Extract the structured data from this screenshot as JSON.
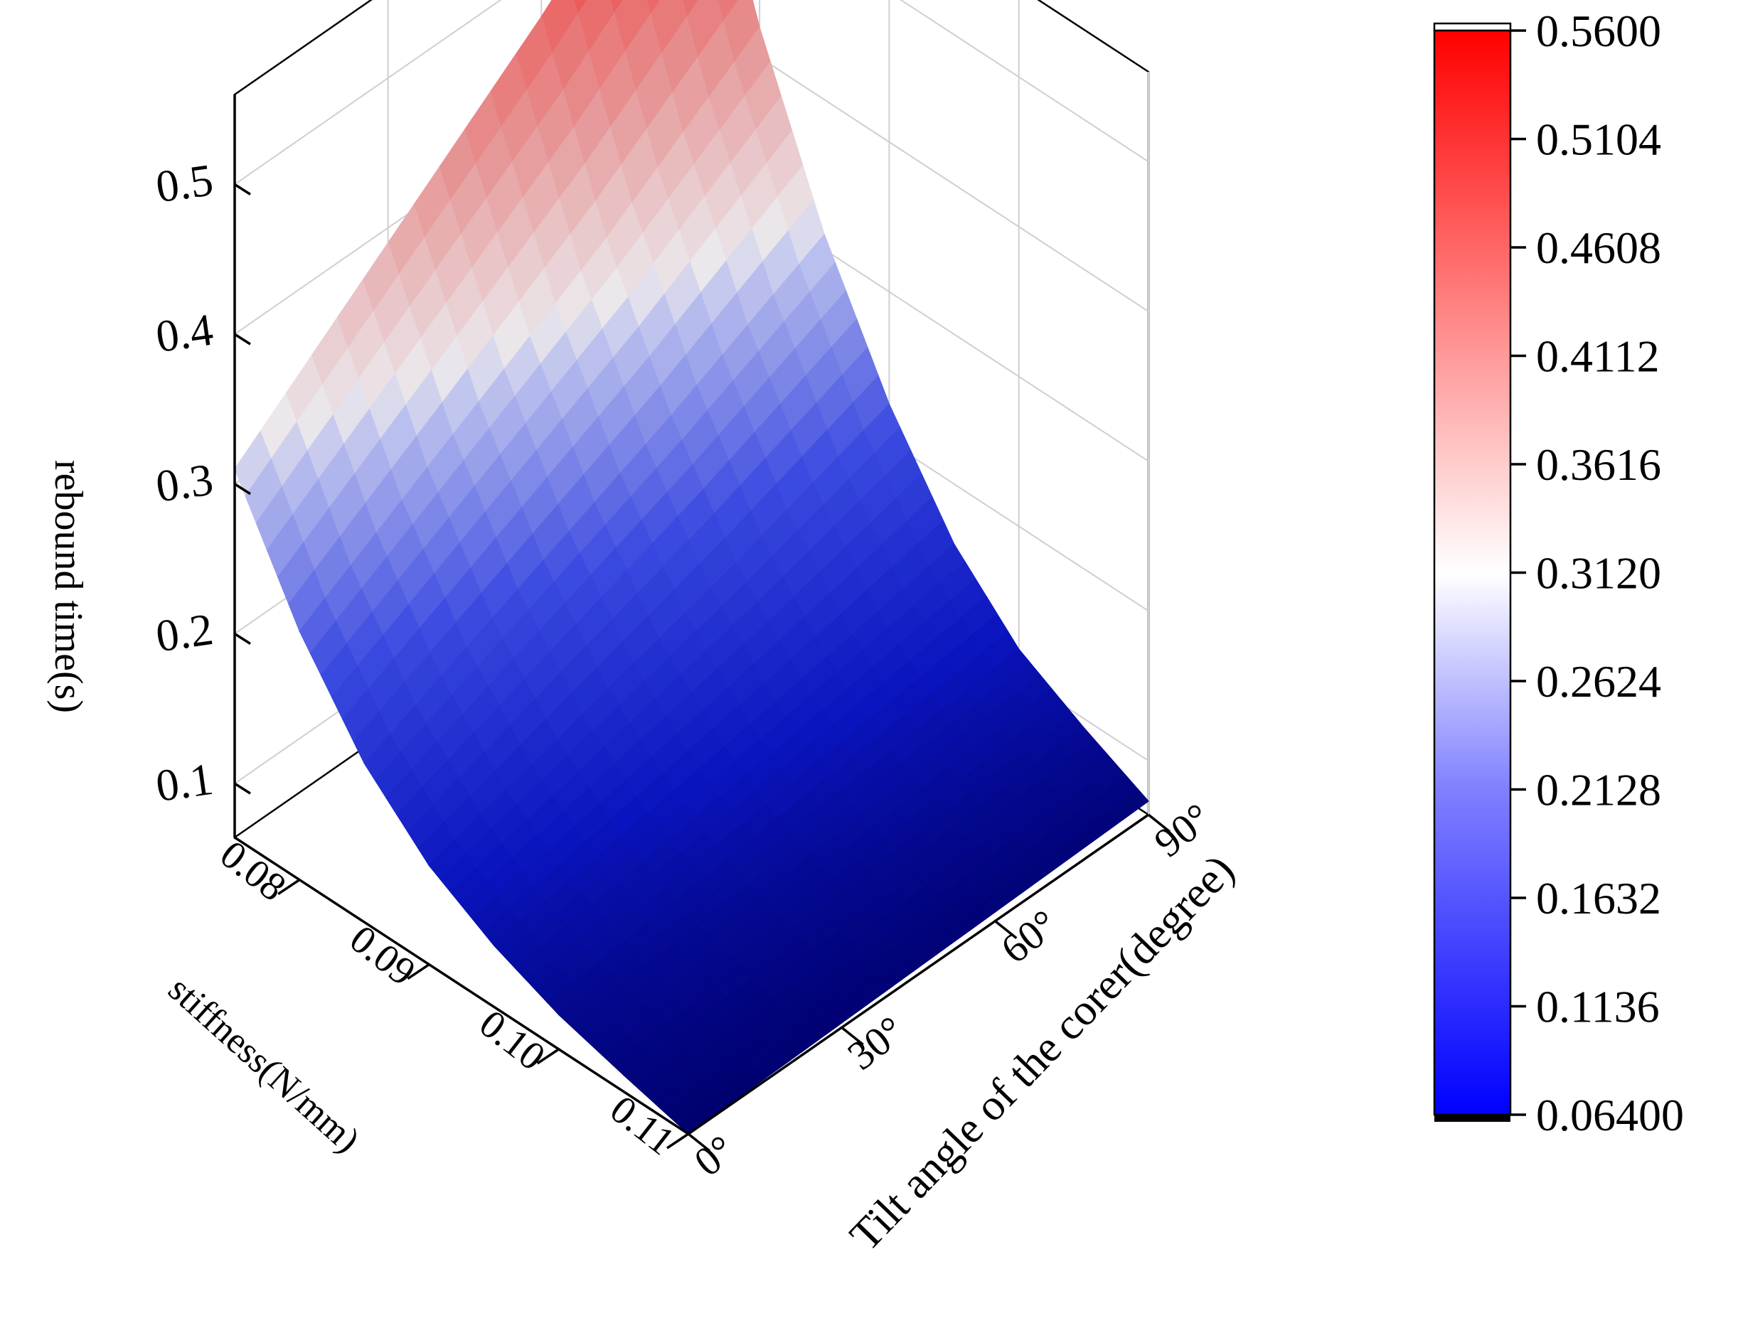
{
  "chart_data": {
    "type": "surface3d",
    "x_axis": {
      "label": "stiffness(N/mm)",
      "ticks": [
        "0.08",
        "0.09",
        "0.10",
        "0.11"
      ],
      "tick_values": [
        0.08,
        0.09,
        0.1,
        0.11
      ],
      "range": [
        0.075,
        0.11
      ]
    },
    "y_axis": {
      "label": "Tilt angle of the corer(degree)",
      "ticks": [
        "0°",
        "30°",
        "60°",
        "90°"
      ],
      "tick_values": [
        0,
        30,
        60,
        90
      ],
      "range": [
        0,
        90
      ]
    },
    "z_axis": {
      "label": "rebound time(s)",
      "ticks": [
        "0.1",
        "0.2",
        "0.3",
        "0.4",
        "0.5"
      ],
      "tick_values": [
        0.1,
        0.2,
        0.3,
        0.4,
        0.5
      ],
      "range": [
        0.064,
        0.56
      ]
    },
    "stiffness_values": [
      0.075,
      0.08,
      0.085,
      0.09,
      0.095,
      0.1,
      0.105,
      0.11
    ],
    "angle_values": [
      0,
      30,
      60,
      90
    ],
    "surface_z": [
      [
        0.31,
        0.39,
        0.47,
        0.56
      ],
      [
        0.23,
        0.29,
        0.35,
        0.42
      ],
      [
        0.17,
        0.215,
        0.26,
        0.31
      ],
      [
        0.13,
        0.16,
        0.19,
        0.225
      ],
      [
        0.105,
        0.122,
        0.14,
        0.16
      ],
      [
        0.087,
        0.097,
        0.108,
        0.118
      ],
      [
        0.075,
        0.081,
        0.087,
        0.094
      ],
      [
        0.064,
        0.067,
        0.07,
        0.073
      ]
    ],
    "colorbar": {
      "ticks": [
        "0.5600",
        "0.5104",
        "0.4608",
        "0.4112",
        "0.3616",
        "0.3120",
        "0.2624",
        "0.2128",
        "0.1632",
        "0.1136",
        "0.06400"
      ],
      "tick_values": [
        0.56,
        0.5104,
        0.4608,
        0.4112,
        0.3616,
        0.312,
        0.2624,
        0.2128,
        0.1632,
        0.1136,
        0.064
      ],
      "range": [
        0.064,
        0.56
      ],
      "colors": {
        "low": "#00007a",
        "mid_low": "#1a2ee6",
        "mid": "#ffffff",
        "mid_high": "#f08080",
        "high": "#ff0000"
      }
    },
    "grid": true,
    "legend_placement": "right"
  }
}
